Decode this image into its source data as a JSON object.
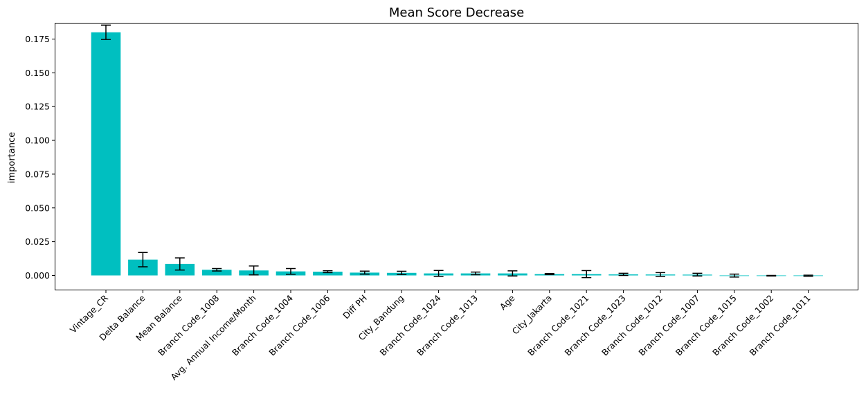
{
  "chart_data": {
    "type": "bar",
    "title": "Mean Score Decrease",
    "xlabel": "",
    "ylabel": "importance",
    "ylim": [
      -0.0105,
      0.1865
    ],
    "yticks": [
      0.0,
      0.025,
      0.05,
      0.075,
      0.1,
      0.125,
      0.15,
      0.175
    ],
    "ytick_labels": [
      "0.000",
      "0.025",
      "0.050",
      "0.075",
      "0.100",
      "0.125",
      "0.150",
      "0.175"
    ],
    "grid": false,
    "bar_color": "#00bfc0",
    "error_color": "#000000",
    "categories": [
      "Vintage_CR",
      "Delta Balance",
      "Mean Balance",
      "Branch Code_1008",
      "Avg. Annual Income/Month",
      "Branch Code_1004",
      "Branch Code_1006",
      "Diff PH",
      "City_Bandung",
      "Branch Code_1024",
      "Branch Code_1013",
      "Age",
      "City_Jakarta",
      "Branch Code_1021",
      "Branch Code_1023",
      "Branch Code_1012",
      "Branch Code_1007",
      "Branch Code_1015",
      "Branch Code_1002",
      "Branch Code_1011"
    ],
    "values": [
      0.18,
      0.0117,
      0.0085,
      0.0042,
      0.0037,
      0.003,
      0.0028,
      0.0021,
      0.0019,
      0.0015,
      0.0015,
      0.0015,
      0.001,
      0.001,
      0.0008,
      0.0007,
      0.0006,
      -0.0001,
      -0.0002,
      -0.0002
    ],
    "errors": [
      0.0053,
      0.0053,
      0.0045,
      0.0009,
      0.0033,
      0.0021,
      0.0007,
      0.0011,
      0.0012,
      0.0022,
      0.001,
      0.0019,
      0.0004,
      0.0026,
      0.0008,
      0.0014,
      0.001,
      0.0011,
      0.0002,
      0.0004
    ]
  }
}
